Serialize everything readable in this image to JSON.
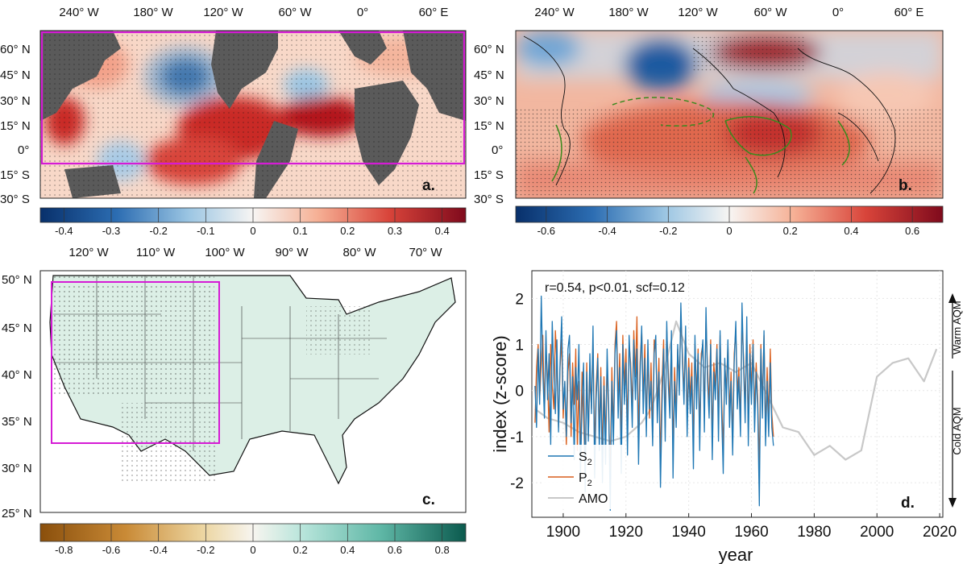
{
  "figure": {
    "panel_a": {
      "letter": "a.",
      "lon_labels": [
        "240° W",
        "180° W",
        "120° W",
        "60° W",
        "0°",
        "60° E"
      ],
      "lat_labels": [
        "60° N",
        "45° N",
        "30° N",
        "15° N",
        "0°",
        "15° S",
        "30° S"
      ],
      "colorbar": {
        "ticks": [
          "-0.4",
          "-0.3",
          "-0.2",
          "-0.1",
          "0",
          "0.1",
          "0.2",
          "0.3",
          "0.4"
        ],
        "min": -0.45,
        "max": 0.45
      }
    },
    "panel_b": {
      "letter": "b.",
      "lon_labels": [
        "240° W",
        "180° W",
        "120° W",
        "60° W",
        "0°",
        "60° E"
      ],
      "lat_labels": [
        "60° N",
        "45° N",
        "30° N",
        "15° N",
        "0°",
        "15° S",
        "30° S"
      ],
      "colorbar": {
        "ticks": [
          "-0.6",
          "-0.4",
          "-0.2",
          "0",
          "0.2",
          "0.4",
          "0.6"
        ],
        "min": -0.7,
        "max": 0.7
      }
    },
    "panel_c": {
      "letter": "c.",
      "lon_labels": [
        "120° W",
        "110° W",
        "100° W",
        "90° W",
        "80° W",
        "70° W"
      ],
      "lat_labels": [
        "50° N",
        "45° N",
        "40° N",
        "35° N",
        "30° N",
        "25° N"
      ],
      "colorbar": {
        "ticks": [
          "-0.8",
          "-0.6",
          "-0.4",
          "-0.2",
          "0",
          "0.2",
          "0.4",
          "0.6",
          "0.8"
        ],
        "min": -0.9,
        "max": 0.9
      }
    },
    "panel_d": {
      "letter": "d.",
      "stats": "r=0.54, p<0.01, scf=0.12",
      "warm_label": "Warm AQM",
      "cold_label": "Cold AQM"
    }
  },
  "chart_data": {
    "type": "line",
    "title": "r=0.54, p<0.01, scf=0.12",
    "xlabel": "year",
    "ylabel": "index (z-score)",
    "xlim": [
      1890,
      2021
    ],
    "ylim": [
      -2.75,
      2.6
    ],
    "xticks": [
      1900,
      1920,
      1940,
      1960,
      1980,
      2000,
      2020
    ],
    "yticks": [
      -2,
      -1,
      0,
      1,
      2
    ],
    "legend_position": "bottom-left",
    "series": [
      {
        "name": "S",
        "subscript": "2",
        "color": "#1f77b4",
        "x_start": 1891,
        "x_step": 0.5,
        "values": [
          0.1,
          -0.8,
          0.9,
          -0.3,
          2.05,
          0.4,
          -0.6,
          1.3,
          -0.2,
          0.8,
          -1.2,
          1.5,
          0.3,
          -0.5,
          1.1,
          -0.9,
          0.6,
          1.6,
          -0.4,
          0.2,
          -1.0,
          0.9,
          1.2,
          -0.7,
          0.3,
          -1.5,
          0.5,
          -0.2,
          1.0,
          -1.8,
          -0.3,
          0.6,
          -2.2,
          0.4,
          -1.1,
          0.8,
          -0.5,
          1.4,
          -1.9,
          -0.2,
          0.7,
          -1.3,
          0.3,
          -2.0,
          0.1,
          -1.6,
          0.9,
          -0.4,
          -2.6,
          0.2,
          -1.2,
          0.8,
          1.3,
          -0.6,
          0.5,
          -1.8,
          1.0,
          -0.3,
          0.6,
          -1.4,
          1.2,
          0.4,
          -0.8,
          1.1,
          -0.2,
          0.9,
          -1.6,
          0.3,
          1.4,
          -0.5,
          0.7,
          -1.0,
          1.1,
          -0.4,
          0.2,
          -1.2,
          0.8,
          1.2,
          -0.7,
          0.4,
          -2.1,
          -0.3,
          0.9,
          -1.1,
          1.5,
          0.1,
          -0.6,
          1.3,
          -1.9,
          0.2,
          -0.8,
          1.0,
          -0.1,
          1.9,
          0.6,
          -0.3,
          1.4,
          -1.0,
          0.5,
          -0.5,
          0.3,
          -1.7,
          1.2,
          -0.4,
          0.8,
          -1.3,
          0.6,
          1.1,
          -0.9,
          1.8,
          0.2,
          -0.6,
          1.0,
          -1.5,
          0.4,
          -0.2,
          0.9,
          -1.1,
          1.3,
          -0.5,
          -1.8,
          0.7,
          -0.3,
          1.1,
          -0.8,
          0.2,
          -1.4,
          0.6,
          1.5,
          -0.4,
          0.3,
          -1.0,
          1.9,
          0.5,
          -0.7,
          1.6,
          -1.2,
          0.8,
          -0.3,
          1.0,
          -0.9,
          0.4,
          -0.4,
          -2.5,
          0.9,
          -0.6,
          1.3,
          -1.2,
          0.2,
          -1.0,
          0.6,
          -0.8,
          -1.2
        ]
      },
      {
        "name": "P",
        "subscript": "2",
        "color": "#d95f1d",
        "x_start": 1891,
        "x_step": 0.5,
        "values": [
          -0.7,
          0.5,
          1.0,
          -0.2,
          0.6,
          1.2,
          -0.5,
          0.9,
          0.3,
          -0.9,
          1.0,
          0.1,
          -0.4,
          1.3,
          0.6,
          -0.8,
          0.5,
          1.1,
          -0.6,
          0.2,
          -1.2,
          0.4,
          0.8,
          -1.0,
          0.6,
          -0.3,
          0.9,
          -1.3,
          0.2,
          -1.5,
          0.4,
          -0.6,
          -1.7,
          0.6,
          -1.0,
          0.3,
          -0.4,
          1.0,
          -1.3,
          0.1,
          0.8,
          -1.0,
          0.5,
          -1.4,
          0.3,
          -1.1,
          0.6,
          -0.6,
          -1.8,
          0.5,
          -0.9,
          1.0,
          1.5,
          -0.3,
          0.8,
          -1.2,
          1.2,
          0.1,
          0.9,
          -0.8,
          1.0,
          0.6,
          -0.4,
          1.3,
          0.3,
          1.6,
          -1.0,
          0.6,
          1.3,
          -0.2,
          1.0,
          -0.7,
          0.8,
          -0.6,
          0.6,
          -0.9,
          1.1,
          0.9,
          -0.4,
          0.7,
          -1.6,
          0.2,
          1.1,
          -0.8,
          1.3,
          0.4,
          -0.3,
          1.0,
          -1.3,
          0.5,
          -0.5,
          0.9,
          0.2,
          1.6,
          0.8,
          -0.1,
          1.2,
          -0.6,
          0.7,
          -0.2,
          0.6,
          -1.2,
          1.0,
          -0.1,
          0.9,
          -0.9,
          0.8,
          1.0,
          -0.5,
          1.5,
          0.5,
          -0.3,
          1.1,
          -1.1,
          0.6,
          0.1,
          1.0,
          -0.6,
          1.2,
          -0.2,
          -1.3,
          0.6,
          0.0,
          1.0,
          -0.5,
          0.4,
          -1.1,
          0.8,
          1.3,
          -0.1,
          0.5,
          -0.7,
          1.5,
          0.7,
          -0.4,
          1.3,
          -0.8,
          1.0,
          0.0,
          1.1,
          -0.5,
          0.6,
          -0.2,
          -1.7,
          1.0,
          -0.3,
          1.2,
          -0.9,
          0.5,
          -0.6,
          0.9,
          -0.5,
          -1.0
        ]
      },
      {
        "name": "AMO",
        "subscript": "",
        "color": "#c8c8c8",
        "x": [
          1891,
          1895,
          1900,
          1905,
          1910,
          1915,
          1920,
          1925,
          1928,
          1932,
          1936,
          1940,
          1945,
          1950,
          1955,
          1960,
          1965,
          1970,
          1975,
          1980,
          1985,
          1990,
          1995,
          2000,
          2005,
          2010,
          2015,
          2019
        ],
        "values": [
          -0.4,
          -0.6,
          -0.7,
          -0.9,
          -1.0,
          -1.1,
          -1.0,
          -0.7,
          -0.4,
          0.4,
          1.5,
          0.8,
          0.5,
          0.6,
          0.4,
          0.6,
          -0.1,
          -0.8,
          -0.9,
          -1.4,
          -1.2,
          -1.5,
          -1.3,
          0.3,
          0.6,
          0.7,
          0.2,
          0.9
        ]
      }
    ]
  }
}
